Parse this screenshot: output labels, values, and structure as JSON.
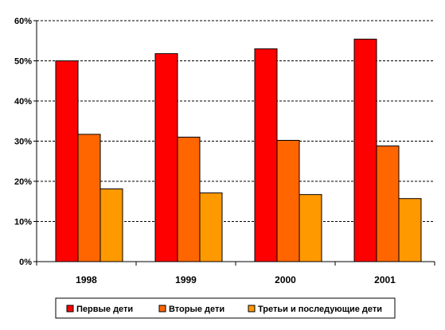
{
  "chart_data": {
    "type": "bar",
    "categories": [
      "1998",
      "1999",
      "2000",
      "2001"
    ],
    "series": [
      {
        "name": "Первые дети",
        "values": [
          50.0,
          51.8,
          53.0,
          55.4
        ],
        "color": "#ff0000"
      },
      {
        "name": "Вторые дети",
        "values": [
          31.7,
          31.0,
          30.2,
          28.8
        ],
        "color": "#ff6600"
      },
      {
        "name": "Третьи и последующие дети",
        "values": [
          18.1,
          17.1,
          16.7,
          15.7
        ],
        "color": "#ff9900"
      }
    ],
    "yticks": [
      "0%",
      "10%",
      "20%",
      "30%",
      "40%",
      "50%",
      "60%"
    ],
    "ylim": [
      0,
      60
    ],
    "grid": true,
    "grid_style": "dashed horizontal",
    "legend_position": "bottom",
    "title": "",
    "xlabel": "",
    "ylabel": ""
  }
}
